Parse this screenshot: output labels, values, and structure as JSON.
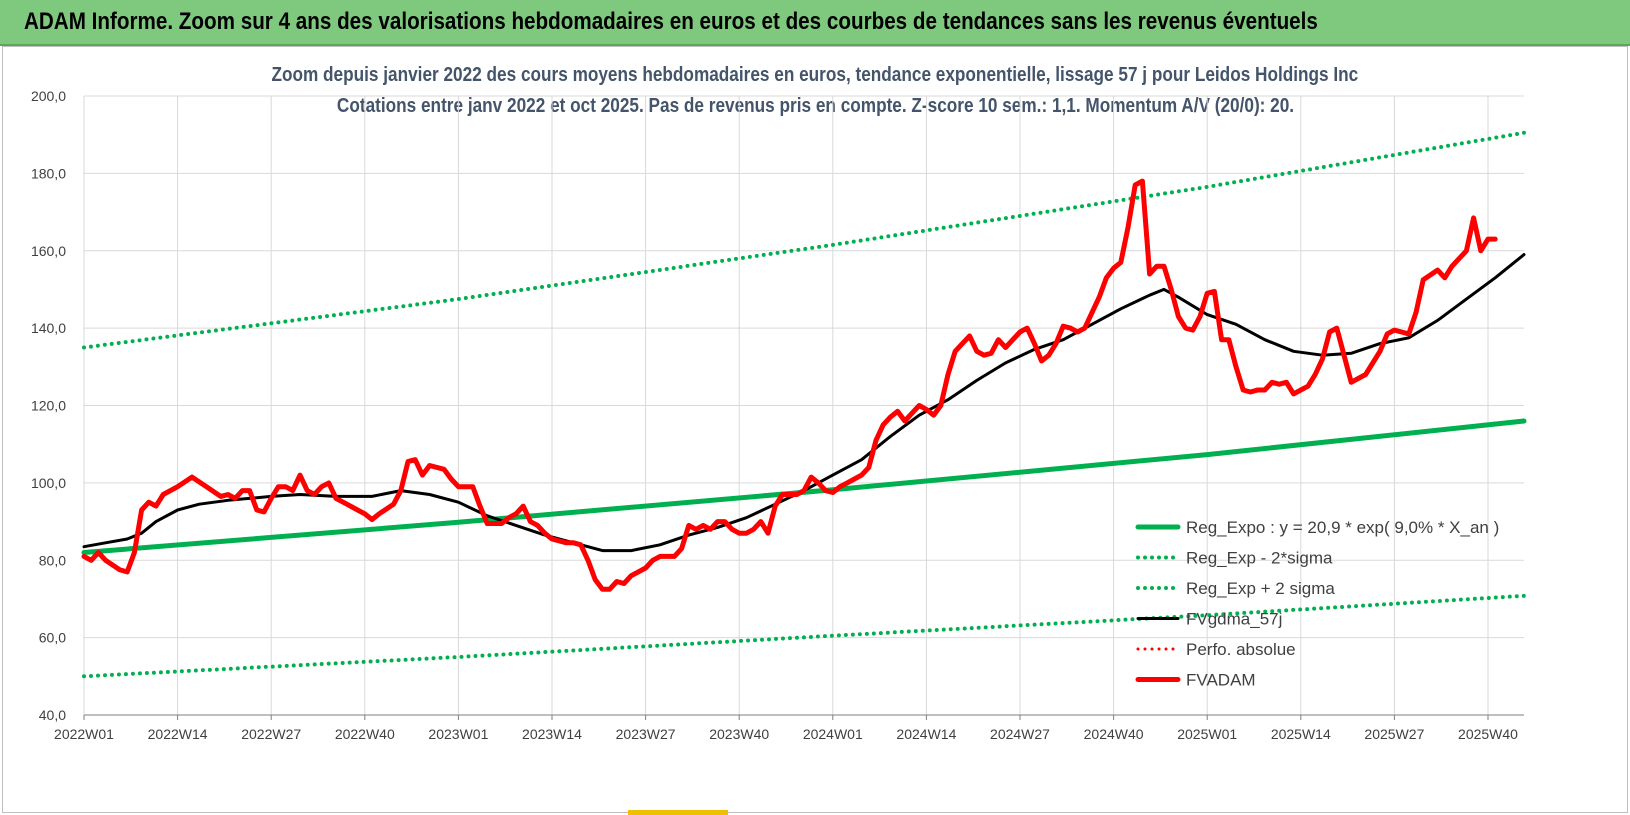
{
  "header": {
    "title": "ADAM Informe. Zoom sur 4 ans des valorisations hebdomadaires en euros et des courbes de tendances sans les revenus éventuels"
  },
  "colors": {
    "header_bg": "#7fc97f",
    "title_text": "#44546a",
    "trend_green": "#00b050",
    "price_red": "#ff0000",
    "ma_black": "#000000",
    "grid": "#d9d9d9"
  },
  "chart_data": {
    "type": "line",
    "title": "Zoom depuis janvier 2022 des cours moyens hebdomadaires en euros, tendance exponentielle, lissage 57 j pour Leidos Holdings Inc",
    "subtitle": "Cotations entre janv 2022 et oct 2025. Pas de revenus pris en compte. Z-score 10 sem.: 1,1. Momentum A/V (20/0): 20.",
    "ylim": [
      40,
      200
    ],
    "y_ticks": [
      "40,0",
      "60,0",
      "80,0",
      "100,0",
      "120,0",
      "140,0",
      "160,0",
      "180,0",
      "200,0"
    ],
    "x_tick_labels": [
      "2022W01",
      "2022W14",
      "2022W27",
      "2022W40",
      "2023W01",
      "2023W14",
      "2023W27",
      "2023W40",
      "2024W01",
      "2024W14",
      "2024W27",
      "2024W40",
      "2025W01",
      "2025W14",
      "2025W27",
      "2025W40"
    ],
    "x_tick_weeks": [
      0,
      13,
      26,
      39,
      52,
      65,
      78,
      91,
      104,
      117,
      130,
      143,
      156,
      169,
      182,
      195
    ],
    "x_max_week": 200,
    "legend_position": "bottom-right",
    "series": [
      {
        "name": "Reg_Expo : y = 20,9 * exp( 9,0% * X_an )",
        "style": "solid",
        "color": "#00b050",
        "width": 5,
        "points": [
          [
            0,
            82
          ],
          [
            52,
            89.8
          ],
          [
            104,
            98.2
          ],
          [
            156,
            107.3
          ],
          [
            200,
            116
          ]
        ]
      },
      {
        "name": "Reg_Exp - 2*sigma",
        "style": "dotted",
        "color": "#00b050",
        "width": 4,
        "points": [
          [
            0,
            50
          ],
          [
            52,
            55
          ],
          [
            104,
            60.5
          ],
          [
            156,
            65.8
          ],
          [
            200,
            70.8
          ]
        ]
      },
      {
        "name": "Reg_Exp + 2 sigma",
        "style": "dotted",
        "color": "#00b050",
        "width": 4,
        "points": [
          [
            0,
            135
          ],
          [
            52,
            147.5
          ],
          [
            104,
            161.5
          ],
          [
            156,
            176.5
          ],
          [
            200,
            190.5
          ]
        ]
      },
      {
        "name": "FVgdma_57j",
        "style": "solid",
        "color": "#000000",
        "width": 3,
        "points": [
          [
            0,
            83.5
          ],
          [
            3,
            84.5
          ],
          [
            6,
            85.5
          ],
          [
            8,
            87
          ],
          [
            10,
            90
          ],
          [
            13,
            93
          ],
          [
            16,
            94.5
          ],
          [
            20,
            95.5
          ],
          [
            26,
            96.5
          ],
          [
            30,
            97
          ],
          [
            35,
            96.5
          ],
          [
            40,
            96.5
          ],
          [
            44,
            98
          ],
          [
            48,
            97
          ],
          [
            52,
            95
          ],
          [
            56,
            91.5
          ],
          [
            60,
            89
          ],
          [
            64,
            86.5
          ],
          [
            68,
            84.5
          ],
          [
            72,
            82.5
          ],
          [
            76,
            82.5
          ],
          [
            80,
            84
          ],
          [
            84,
            86.5
          ],
          [
            88,
            88.5
          ],
          [
            92,
            91
          ],
          [
            96,
            94.5
          ],
          [
            100,
            98
          ],
          [
            104,
            102
          ],
          [
            108,
            106
          ],
          [
            112,
            112
          ],
          [
            116,
            117.5
          ],
          [
            120,
            121.5
          ],
          [
            124,
            126.5
          ],
          [
            128,
            131
          ],
          [
            132,
            134.5
          ],
          [
            136,
            137
          ],
          [
            140,
            141
          ],
          [
            144,
            145
          ],
          [
            148,
            148.5
          ],
          [
            150,
            150
          ],
          [
            152,
            148
          ],
          [
            156,
            143.5
          ],
          [
            160,
            141
          ],
          [
            164,
            137
          ],
          [
            168,
            134
          ],
          [
            172,
            133
          ],
          [
            176,
            133.5
          ],
          [
            180,
            136
          ],
          [
            184,
            137.5
          ],
          [
            188,
            142
          ],
          [
            192,
            147.5
          ],
          [
            196,
            153
          ],
          [
            200,
            159
          ]
        ]
      },
      {
        "name": "Perfo. absolue",
        "style": "dotted",
        "color": "#ff0000",
        "width": 2,
        "points": []
      },
      {
        "name": "FVADAM",
        "style": "solid",
        "color": "#ff0000",
        "width": 5,
        "points": [
          [
            0,
            81
          ],
          [
            1,
            80
          ],
          [
            2,
            82
          ],
          [
            3,
            80
          ],
          [
            5,
            77.5
          ],
          [
            6,
            77
          ],
          [
            7,
            82
          ],
          [
            8,
            93
          ],
          [
            9,
            95
          ],
          [
            10,
            94
          ],
          [
            11,
            97
          ],
          [
            13,
            99
          ],
          [
            15,
            101.5
          ],
          [
            17,
            99
          ],
          [
            19,
            96.5
          ],
          [
            20,
            97
          ],
          [
            21,
            96
          ],
          [
            22,
            98
          ],
          [
            23,
            98
          ],
          [
            24,
            93
          ],
          [
            25,
            92.5
          ],
          [
            26,
            96
          ],
          [
            27,
            99
          ],
          [
            28,
            99
          ],
          [
            29,
            98
          ],
          [
            30,
            102
          ],
          [
            31,
            98
          ],
          [
            32,
            97
          ],
          [
            33,
            99
          ],
          [
            34,
            100
          ],
          [
            35,
            96
          ],
          [
            36,
            95
          ],
          [
            38,
            93
          ],
          [
            39,
            92
          ],
          [
            40,
            90.5
          ],
          [
            41,
            92
          ],
          [
            43,
            94.5
          ],
          [
            44,
            98
          ],
          [
            45,
            105.5
          ],
          [
            46,
            106
          ],
          [
            47,
            102
          ],
          [
            48,
            104.5
          ],
          [
            50,
            103.5
          ],
          [
            51,
            101
          ],
          [
            52,
            99
          ],
          [
            54,
            99
          ],
          [
            55,
            94
          ],
          [
            56,
            89.5
          ],
          [
            58,
            89.5
          ],
          [
            59,
            91
          ],
          [
            60,
            92
          ],
          [
            61,
            94
          ],
          [
            62,
            90
          ],
          [
            63,
            89
          ],
          [
            64,
            87
          ],
          [
            65,
            85.5
          ],
          [
            67,
            84.5
          ],
          [
            68,
            84.5
          ],
          [
            69,
            84
          ],
          [
            70,
            80
          ],
          [
            71,
            75
          ],
          [
            72,
            72.5
          ],
          [
            73,
            72.5
          ],
          [
            74,
            74.5
          ],
          [
            75,
            74
          ],
          [
            76,
            76
          ],
          [
            78,
            78
          ],
          [
            79,
            80
          ],
          [
            80,
            81
          ],
          [
            82,
            81
          ],
          [
            83,
            83
          ],
          [
            84,
            89
          ],
          [
            85,
            88
          ],
          [
            86,
            89
          ],
          [
            87,
            88
          ],
          [
            88,
            90
          ],
          [
            89,
            90
          ],
          [
            90,
            88
          ],
          [
            91,
            87
          ],
          [
            92,
            87
          ],
          [
            93,
            88
          ],
          [
            94,
            90
          ],
          [
            95,
            87
          ],
          [
            96,
            94
          ],
          [
            97,
            97
          ],
          [
            98,
            97
          ],
          [
            99,
            97
          ],
          [
            100,
            98
          ],
          [
            101,
            101.5
          ],
          [
            102,
            100
          ],
          [
            103,
            98
          ],
          [
            104,
            97.5
          ],
          [
            105,
            99
          ],
          [
            106,
            100
          ],
          [
            107,
            101
          ],
          [
            108,
            102
          ],
          [
            109,
            104
          ],
          [
            110,
            111
          ],
          [
            111,
            115
          ],
          [
            112,
            117
          ],
          [
            113,
            118.5
          ],
          [
            114,
            116
          ],
          [
            115,
            118
          ],
          [
            116,
            120
          ],
          [
            117,
            119
          ],
          [
            118,
            117.5
          ],
          [
            119,
            120
          ],
          [
            120,
            128
          ],
          [
            121,
            134
          ],
          [
            122,
            136
          ],
          [
            123,
            138
          ],
          [
            124,
            134
          ],
          [
            125,
            133
          ],
          [
            126,
            133.5
          ],
          [
            127,
            137
          ],
          [
            128,
            135
          ],
          [
            129,
            137
          ],
          [
            130,
            139
          ],
          [
            131,
            140
          ],
          [
            132,
            136
          ],
          [
            133,
            131.5
          ],
          [
            134,
            133
          ],
          [
            135,
            136
          ],
          [
            136,
            140.5
          ],
          [
            137,
            140
          ],
          [
            138,
            139
          ],
          [
            139,
            140
          ],
          [
            140,
            144
          ],
          [
            141,
            148
          ],
          [
            142,
            153
          ],
          [
            143,
            155.5
          ],
          [
            144,
            157
          ],
          [
            145,
            166
          ],
          [
            146,
            177
          ],
          [
            147,
            178
          ],
          [
            148,
            154
          ],
          [
            149,
            156
          ],
          [
            150,
            156
          ],
          [
            151,
            150
          ],
          [
            152,
            143
          ],
          [
            153,
            140
          ],
          [
            154,
            139.5
          ],
          [
            155,
            143
          ],
          [
            156,
            149
          ],
          [
            157,
            149.5
          ],
          [
            158,
            137
          ],
          [
            159,
            137
          ],
          [
            160,
            130
          ],
          [
            161,
            124
          ],
          [
            162,
            123.5
          ],
          [
            163,
            124
          ],
          [
            164,
            124
          ],
          [
            165,
            126
          ],
          [
            166,
            125.5
          ],
          [
            167,
            126
          ],
          [
            168,
            123
          ],
          [
            169,
            124
          ],
          [
            170,
            125
          ],
          [
            171,
            128
          ],
          [
            172,
            132
          ],
          [
            173,
            139
          ],
          [
            174,
            140
          ],
          [
            175,
            133
          ],
          [
            176,
            126
          ],
          [
            178,
            128
          ],
          [
            180,
            134
          ],
          [
            181,
            138.5
          ],
          [
            182,
            139.5
          ],
          [
            183,
            139
          ],
          [
            184,
            138.5
          ],
          [
            185,
            144
          ],
          [
            186,
            152.5
          ],
          [
            188,
            155
          ],
          [
            189,
            153
          ],
          [
            190,
            156
          ],
          [
            192,
            160
          ],
          [
            193,
            168.5
          ],
          [
            194,
            160
          ],
          [
            195,
            163
          ],
          [
            196,
            163
          ]
        ]
      }
    ]
  }
}
